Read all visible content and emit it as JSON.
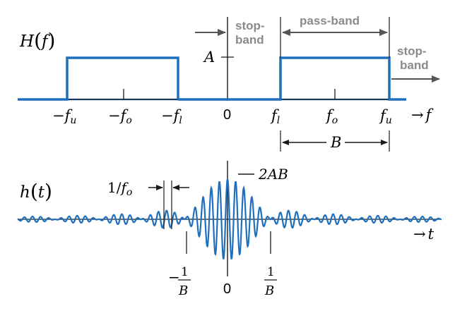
{
  "colors": {
    "signal": "#1f6fbf",
    "axis": "#1a1a1a",
    "annotation_grey": "#8a8a8a",
    "arrow_grey": "#555555"
  },
  "top_plot": {
    "ylabel_fn": "H",
    "ylabel_arg": "f",
    "amplitude_label": "A",
    "x_arrow_label": "→",
    "x_var": "f",
    "ticks": {
      "neg_fu_sign": "−",
      "neg_fu_var": "f",
      "neg_fu_sub": "u",
      "neg_fo_sign": "−",
      "neg_fo_var": "f",
      "neg_fo_sub": "o",
      "neg_fl_sign": "−",
      "neg_fl_var": "f",
      "neg_fl_sub": "l",
      "zero": "0",
      "fl_var": "f",
      "fl_sub": "l",
      "fo_var": "f",
      "fo_sub": "o",
      "fu_var": "f",
      "fu_sub": "u"
    },
    "stopband_left_line1": "stop-",
    "stopband_left_line2": "band",
    "passband": "pass-band",
    "stopband_right_line1": "stop-",
    "stopband_right_line2": "band",
    "bandwidth_label": "B"
  },
  "bottom_plot": {
    "ylabel_fn": "h",
    "ylabel_arg": "t",
    "period_label_num": "1/",
    "period_label_var": "f",
    "period_label_sub": "o",
    "peak_label": "2AB",
    "x_arrow_label": "→",
    "x_var": "t",
    "neg_zero_sign": "−",
    "neg_zero_num": "1",
    "neg_zero_den": "B",
    "zero": "0",
    "pos_zero_num": "1",
    "pos_zero_den": "B"
  },
  "chart_data": {
    "type": "line",
    "panels": [
      {
        "description_free": true,
        "kind": "ideal-bandpass-frequency-response",
        "x": [
          "-f_u",
          "-f_o",
          "-f_l",
          "0",
          "f_l",
          "f_o",
          "f_u"
        ],
        "H_values": [
          1,
          1,
          1,
          0,
          1,
          1,
          1
        ],
        "amplitude": "A"
      },
      {
        "kind": "bandpass-impulse-response",
        "envelope": "sinc",
        "peak": "2AB",
        "first_zeros": [
          "-1/B",
          "1/B"
        ],
        "carrier_period": "1/f_o",
        "carrier_cycles_per_mainlobe_half": 5
      }
    ]
  }
}
